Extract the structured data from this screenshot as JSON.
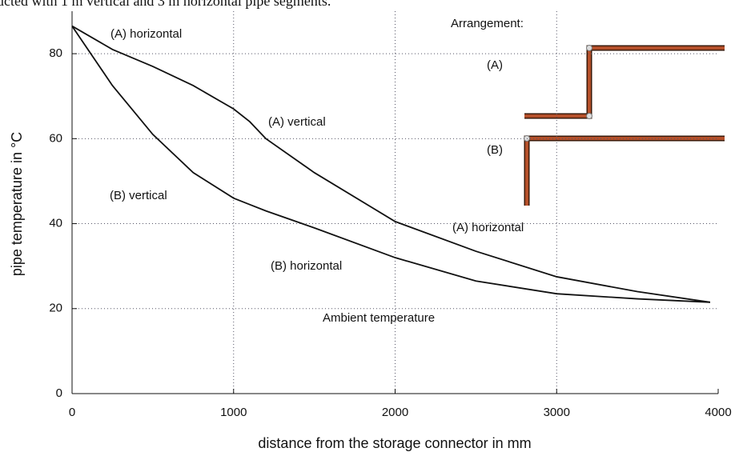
{
  "chart_data": {
    "type": "line",
    "caption": "ucted with 1 m vertical and 3 m horizontal pipe segments.",
    "xlabel": "distance from the storage connector in mm",
    "ylabel": "pipe temperature in °C",
    "x": [
      0,
      250,
      500,
      750,
      1000,
      1100,
      1200,
      1500,
      2000,
      2500,
      3000,
      3500,
      3950
    ],
    "series": [
      {
        "color": "#111111",
        "values": [
          86.5,
          81,
          77,
          72.5,
          67,
          64,
          60,
          52,
          40.5,
          33.5,
          27.5,
          24,
          21.5
        ]
      },
      {
        "color": "#111111",
        "values": [
          86.5,
          72.5,
          61,
          52,
          46,
          44.5,
          43,
          39,
          32,
          26.5,
          23.5,
          22.3,
          21.5
        ]
      }
    ],
    "annotations": [
      "(A) horizontal",
      "(A) vertical",
      "(B) vertical",
      "(A) horizontal",
      "(B) horizontal",
      "Ambient temperature"
    ],
    "inset": {
      "title": "Arrangement:",
      "a": "(A)",
      "b": "(B)"
    },
    "xlim": [
      0,
      4000
    ],
    "ylim": [
      0,
      90
    ],
    "xticks": [
      0,
      1000,
      2000,
      3000,
      4000
    ],
    "yticks": [
      0,
      20,
      40,
      60,
      80
    ],
    "grid": true
  }
}
